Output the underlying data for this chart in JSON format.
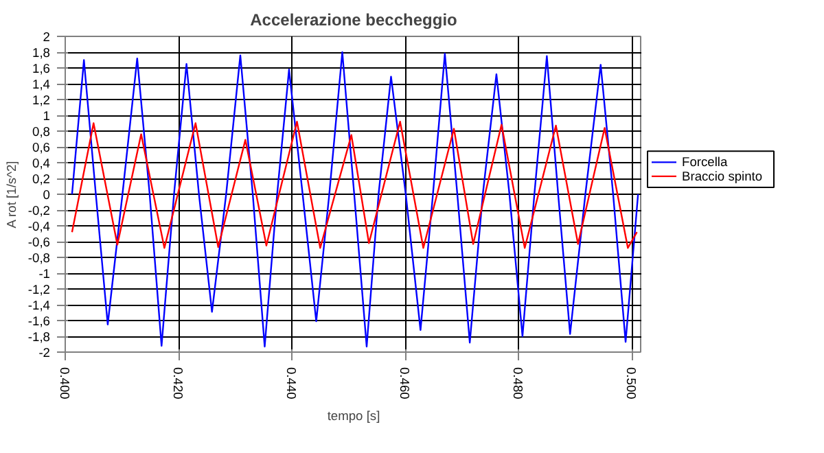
{
  "chart_data": {
    "type": "line",
    "title": "Accelerazione beccheggio",
    "xlabel": "tempo [s]",
    "ylabel": "A rot [1/s^2]",
    "xlim": [
      0.4,
      0.5018
    ],
    "ylim": [
      -2,
      2
    ],
    "xticks": [
      {
        "value": 0.4,
        "label": "0.400"
      },
      {
        "value": 0.42,
        "label": "0.420"
      },
      {
        "value": 0.44,
        "label": "0.440"
      },
      {
        "value": 0.46,
        "label": "0.460"
      },
      {
        "value": 0.48,
        "label": "0.480"
      },
      {
        "value": 0.5,
        "label": "0.500"
      }
    ],
    "yticks": [
      -2,
      {
        "value": -1.8,
        "label": "-1,8"
      },
      {
        "value": -1.6,
        "label": "-1,6"
      },
      {
        "value": -1.4,
        "label": "-1,4"
      },
      {
        "value": -1.2,
        "label": "-1,2"
      },
      -1,
      {
        "value": -0.8,
        "label": "-0,8"
      },
      {
        "value": -0.6,
        "label": "-0,6"
      },
      {
        "value": -0.4,
        "label": "-0,4"
      },
      {
        "value": -0.2,
        "label": "-0,2"
      },
      0,
      {
        "value": 0.2,
        "label": "0,2"
      },
      {
        "value": 0.4,
        "label": "0,4"
      },
      {
        "value": 0.6,
        "label": "0,6"
      },
      {
        "value": 0.8,
        "label": "0,8"
      },
      1,
      {
        "value": 1.2,
        "label": "1,2"
      },
      {
        "value": 1.4,
        "label": "1,4"
      },
      {
        "value": 1.6,
        "label": "1,6"
      },
      {
        "value": 1.8,
        "label": "1,8"
      },
      2
    ],
    "grid": true,
    "legend": "right",
    "series": [
      {
        "name": "Forcella",
        "color": "#0000ff",
        "x": [
          0.4012,
          0.4033,
          0.4054,
          0.4075,
          0.4101,
          0.4127,
          0.4149,
          0.417,
          0.4192,
          0.4214,
          0.4236,
          0.4259,
          0.4284,
          0.4309,
          0.4331,
          0.4352,
          0.4374,
          0.4395,
          0.4419,
          0.4443,
          0.4466,
          0.4489,
          0.451,
          0.4532,
          0.4553,
          0.4575,
          0.4601,
          0.4627,
          0.4649,
          0.467,
          0.4692,
          0.4714,
          0.4737,
          0.4761,
          0.4784,
          0.4807,
          0.4828,
          0.485,
          0.487,
          0.4891,
          0.4918,
          0.4945,
          0.4967,
          0.4989,
          0.5011
        ],
        "values": [
          0,
          1.7,
          0,
          -1.65,
          0,
          1.72,
          0,
          -1.92,
          0,
          1.65,
          0,
          -1.49,
          0,
          1.76,
          0,
          -1.93,
          0,
          1.58,
          0,
          -1.61,
          0,
          1.8,
          0,
          -1.93,
          0,
          1.49,
          0,
          -1.72,
          0,
          1.78,
          0,
          -1.88,
          0,
          1.52,
          0,
          -1.8,
          0,
          1.75,
          0,
          -1.77,
          0,
          1.64,
          0,
          -1.87,
          0
        ]
      },
      {
        "name": "Braccio spinto",
        "color": "#ff0000",
        "x": [
          0.4012,
          0.405,
          0.4092,
          0.4134,
          0.4175,
          0.423,
          0.427,
          0.4318,
          0.4355,
          0.4409,
          0.445,
          0.4505,
          0.4536,
          0.4591,
          0.4632,
          0.4686,
          0.472,
          0.477,
          0.4811,
          0.4866,
          0.4905,
          0.4952,
          0.4993,
          0.5009
        ],
        "values": [
          -0.48,
          0.9,
          -0.64,
          0.76,
          -0.68,
          0.9,
          -0.67,
          0.69,
          -0.65,
          0.92,
          -0.68,
          0.75,
          -0.62,
          0.92,
          -0.68,
          0.83,
          -0.63,
          0.88,
          -0.68,
          0.87,
          -0.63,
          0.84,
          -0.68,
          -0.48
        ]
      }
    ]
  }
}
